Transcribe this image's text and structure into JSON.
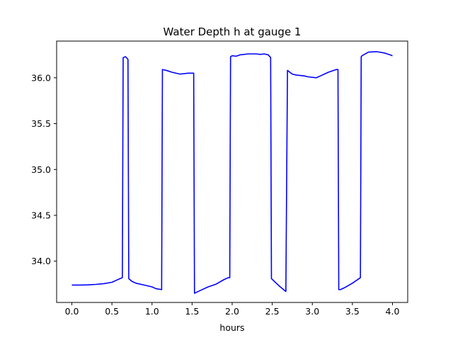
{
  "chart_data": {
    "type": "line",
    "title": "Water Depth h at gauge 1",
    "xlabel": "hours",
    "ylabel": "",
    "xlim": [
      -0.19,
      4.19
    ],
    "ylim": [
      33.55,
      36.4
    ],
    "xticks": [
      0.0,
      0.5,
      1.0,
      1.5,
      2.0,
      2.5,
      3.0,
      3.5,
      4.0
    ],
    "xtick_labels": [
      "0.0",
      "0.5",
      "1.0",
      "1.5",
      "2.0",
      "2.5",
      "3.0",
      "3.5",
      "4.0"
    ],
    "yticks": [
      34.0,
      34.5,
      35.0,
      35.5,
      36.0
    ],
    "ytick_labels": [
      "34.0",
      "34.5",
      "35.0",
      "35.5",
      "36.0"
    ],
    "grid": false,
    "series": [
      {
        "color": "#0000ff",
        "x": [
          0.0,
          0.1,
          0.2,
          0.3,
          0.4,
          0.5,
          0.55,
          0.6,
          0.63,
          0.64,
          0.67,
          0.7,
          0.71,
          0.75,
          0.8,
          0.9,
          1.0,
          1.05,
          1.12,
          1.13,
          1.18,
          1.25,
          1.35,
          1.45,
          1.52,
          1.53,
          1.6,
          1.7,
          1.8,
          1.9,
          1.95,
          1.97,
          1.98,
          2.0,
          2.05,
          2.1,
          2.2,
          2.3,
          2.35,
          2.4,
          2.45,
          2.48,
          2.49,
          2.55,
          2.6,
          2.67,
          2.69,
          2.72,
          2.75,
          2.8,
          2.9,
          2.95,
          3.05,
          3.1,
          3.2,
          3.3,
          3.32,
          3.33,
          3.35,
          3.4,
          3.5,
          3.6,
          3.61,
          3.62,
          3.7,
          3.8,
          3.9,
          3.97,
          4.0
        ],
        "y": [
          33.74,
          33.74,
          33.742,
          33.747,
          33.755,
          33.77,
          33.79,
          33.81,
          33.82,
          36.22,
          36.23,
          36.2,
          33.81,
          33.78,
          33.76,
          33.74,
          33.72,
          33.7,
          33.69,
          36.09,
          36.08,
          36.06,
          36.04,
          36.05,
          36.05,
          33.65,
          33.68,
          33.72,
          33.75,
          33.8,
          33.82,
          33.82,
          36.23,
          36.24,
          36.235,
          36.25,
          36.26,
          36.26,
          36.255,
          36.26,
          36.25,
          36.22,
          33.81,
          33.76,
          33.72,
          33.67,
          36.08,
          36.06,
          36.04,
          36.03,
          36.02,
          36.01,
          36.0,
          36.02,
          36.06,
          36.09,
          36.09,
          33.69,
          33.69,
          33.71,
          33.76,
          33.82,
          36.23,
          36.24,
          36.28,
          36.285,
          36.27,
          36.25,
          36.24
        ]
      }
    ]
  }
}
